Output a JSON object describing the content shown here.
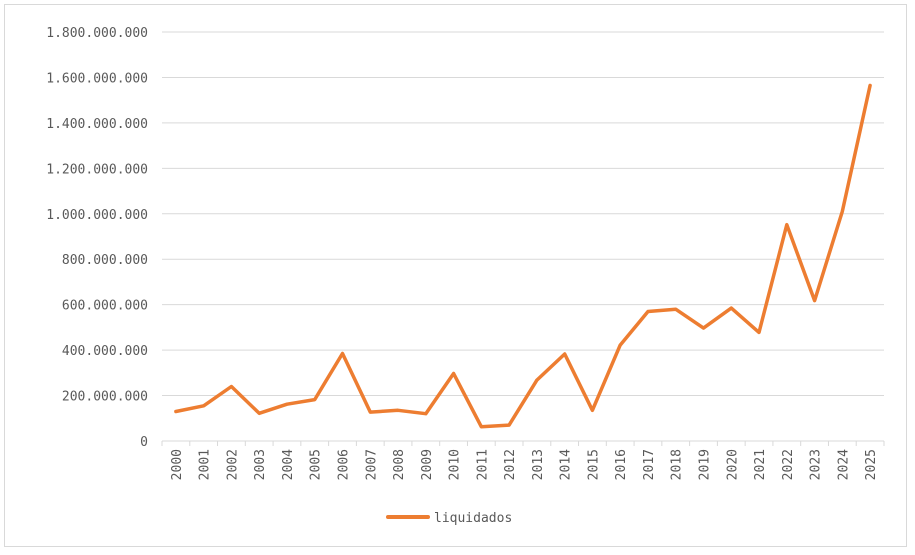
{
  "chart_data": {
    "type": "line",
    "title": "",
    "xlabel": "",
    "ylabel": "",
    "categories": [
      "2000",
      "2001",
      "2002",
      "2003",
      "2004",
      "2005",
      "2006",
      "2007",
      "2008",
      "2009",
      "2010",
      "2011",
      "2012",
      "2013",
      "2014",
      "2015",
      "2016",
      "2017",
      "2018",
      "2019",
      "2020",
      "2021",
      "2022",
      "2023",
      "2024",
      "2025"
    ],
    "series": [
      {
        "name": "liquidados",
        "color": "#ed7d31",
        "values": [
          130000000,
          155000000,
          240000000,
          122000000,
          162000000,
          182000000,
          385000000,
          127000000,
          135000000,
          120000000,
          297000000,
          63000000,
          70000000,
          268000000,
          383000000,
          135000000,
          422000000,
          570000000,
          580000000,
          497000000,
          585000000,
          478000000,
          952000000,
          618000000,
          1010000000,
          1565000000
        ]
      }
    ],
    "ylim": [
      0,
      1800000000
    ],
    "yticks": [
      0,
      200000000,
      400000000,
      600000000,
      800000000,
      1000000000,
      1200000000,
      1400000000,
      1600000000,
      1800000000
    ],
    "ytick_labels": [
      "0",
      "200.000.000",
      "400.000.000",
      "600.000.000",
      "800.000.000",
      "1.000.000.000",
      "1.200.000.000",
      "1.400.000.000",
      "1.600.000.000",
      "1.800.000.000"
    ],
    "grid": true,
    "legend_position": "bottom",
    "gridline_color": "#d9d9d9"
  }
}
